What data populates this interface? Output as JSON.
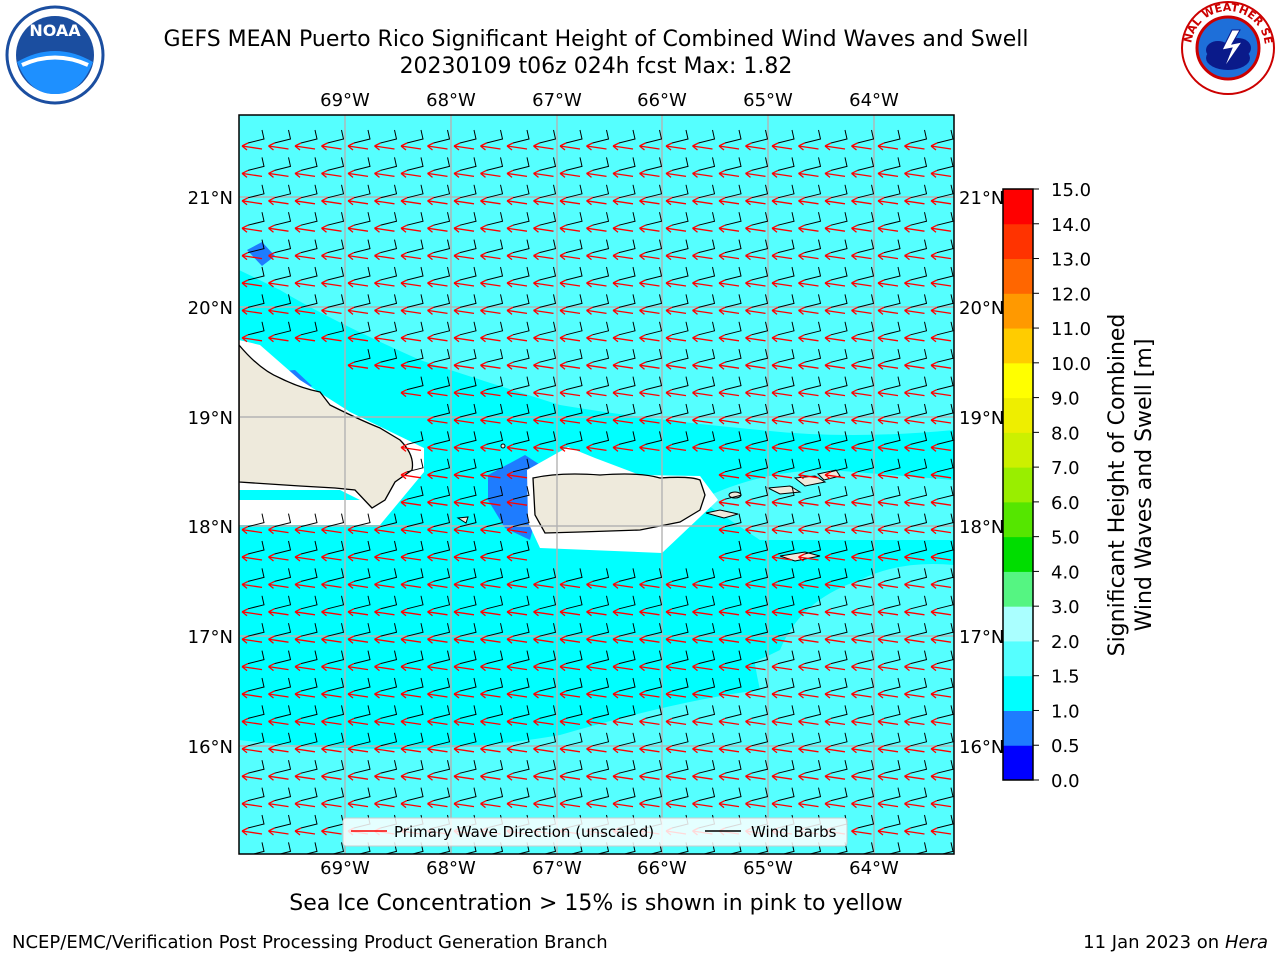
{
  "header": {
    "title_line1": "GEFS MEAN Puerto Rico Significant Height of Combined Wind Waves and Swell",
    "title_line2": "20230109 t06z 024h fcst   Max: 1.82"
  },
  "logos": {
    "left": {
      "name": "noaa-logo",
      "text": "NOAA"
    },
    "right": {
      "name": "nws-logo",
      "text": "NATIONAL WEATHER SERVICE"
    }
  },
  "map": {
    "lon_labels": [
      "69°W",
      "68°W",
      "67°W",
      "66°W",
      "65°W",
      "64°W"
    ],
    "lat_labels": [
      "21°N",
      "20°N",
      "19°N",
      "18°N",
      "17°N",
      "16°N"
    ],
    "legend": {
      "wave_direction": "Primary Wave Direction (unscaled)",
      "wind_barbs": "Wind Barbs"
    },
    "colors": {
      "ocean_main": "#00ffff",
      "ocean_light": "#55ffff",
      "land": "#eeeadc",
      "low_wave": "#1e7cff",
      "arrow": "#ff0000",
      "barb": "#000000",
      "grid": "#b3b3b3"
    }
  },
  "colorbar": {
    "label_line1": "Significant Height of Combined",
    "label_line2": "Wind Waves and Swell [m]",
    "ticks": [
      "0.0",
      "0.5",
      "1.0",
      "1.5",
      "2.0",
      "3.0",
      "4.0",
      "5.0",
      "6.0",
      "7.0",
      "8.0",
      "9.0",
      "10.0",
      "11.0",
      "12.0",
      "13.0",
      "14.0",
      "15.0"
    ],
    "colors": [
      "#0000ff",
      "#1e7cff",
      "#00ffff",
      "#55ffff",
      "#aaffff",
      "#55f582",
      "#00dd00",
      "#55e600",
      "#99ee00",
      "#ccf000",
      "#eeee00",
      "#ffff00",
      "#ffcc00",
      "#ff9900",
      "#ff6600",
      "#ff3300",
      "#ff0000"
    ]
  },
  "subcaption": "Sea Ice Concentration > 15% is shown in pink to yellow",
  "footer": {
    "left": "NCEP/EMC/Verification Post Processing Product Generation Branch",
    "right_date": "11 Jan 2023 on ",
    "right_host": "Hera"
  }
}
